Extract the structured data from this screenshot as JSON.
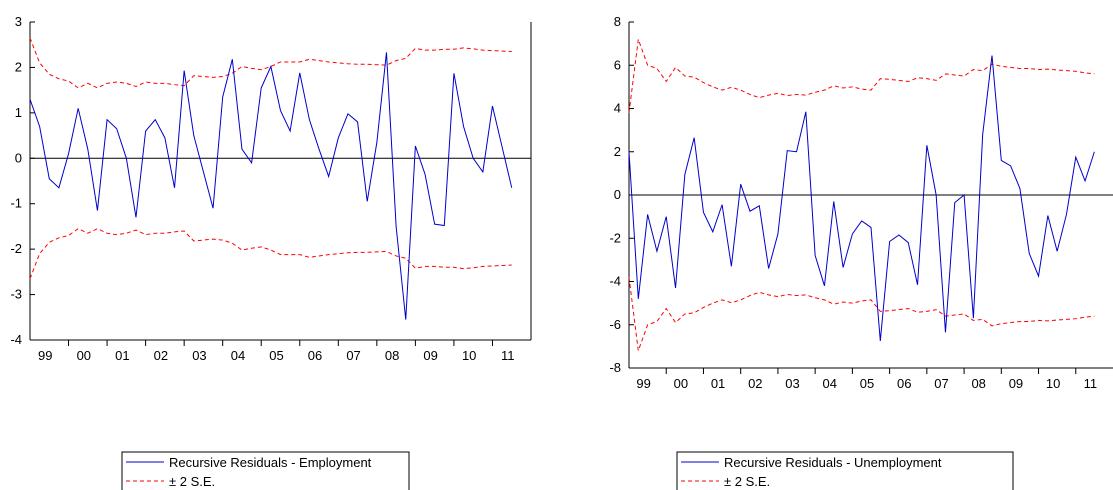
{
  "colors": {
    "residual_line": "#0000cc",
    "band_line": "#ff0000",
    "axis": "#000000",
    "zero_line": "#000000"
  },
  "chart_data": [
    {
      "type": "line",
      "title": "",
      "xlabel": "",
      "ylabel": "",
      "x_start": 1999.0,
      "x_end": 2012.0,
      "x_step": 0.25,
      "xlim": [
        1999.0,
        2012.0
      ],
      "ylim": [
        -4,
        3
      ],
      "yticks": [
        3,
        2,
        1,
        0,
        -1,
        -2,
        -3,
        -4
      ],
      "ytick_labels": [
        "3",
        "2",
        "1",
        "0",
        "-1",
        "-2",
        "-3",
        "-4"
      ],
      "xtick_labels": [
        "99",
        "00",
        "01",
        "02",
        "03",
        "04",
        "05",
        "06",
        "07",
        "08",
        "09",
        "10",
        "11"
      ],
      "grid": false,
      "zero_line": true,
      "legend_position": "bottom-center",
      "series": [
        {
          "name": "Recursive Residuals - Employment",
          "style": "solid",
          "values": [
            1.3,
            0.7,
            -0.45,
            -0.65,
            0.1,
            1.1,
            0.2,
            -1.15,
            0.85,
            0.65,
            0.0,
            -1.3,
            0.6,
            0.85,
            0.45,
            -0.65,
            1.93,
            0.5,
            -0.3,
            -1.1,
            1.35,
            2.18,
            0.2,
            -0.1,
            1.55,
            2.02,
            1.05,
            0.6,
            1.88,
            0.85,
            0.2,
            -0.4,
            0.45,
            0.98,
            0.8,
            -0.95,
            0.35,
            2.33,
            -1.5,
            -3.55,
            0.27,
            -0.35,
            -1.45,
            -1.48,
            1.87,
            0.7,
            0.0,
            -0.3,
            1.15,
            0.25,
            -0.65
          ]
        },
        {
          "name": "± 2 S.E.",
          "style": "dashed",
          "upper": [
            2.65,
            2.1,
            1.85,
            1.75,
            1.7,
            1.55,
            1.65,
            1.55,
            1.65,
            1.68,
            1.65,
            1.58,
            1.68,
            1.65,
            1.65,
            1.62,
            1.6,
            1.82,
            1.8,
            1.78,
            1.8,
            1.87,
            2.02,
            1.98,
            1.95,
            2.02,
            2.12,
            2.12,
            2.12,
            2.18,
            2.15,
            2.12,
            2.1,
            2.08,
            2.07,
            2.07,
            2.06,
            2.05,
            2.15,
            2.2,
            2.42,
            2.38,
            2.38,
            2.4,
            2.4,
            2.43,
            2.41,
            2.38,
            2.37,
            2.36,
            2.35
          ],
          "lower": [
            -2.65,
            -2.1,
            -1.85,
            -1.75,
            -1.7,
            -1.55,
            -1.65,
            -1.55,
            -1.65,
            -1.68,
            -1.65,
            -1.58,
            -1.68,
            -1.65,
            -1.65,
            -1.62,
            -1.6,
            -1.82,
            -1.8,
            -1.78,
            -1.8,
            -1.87,
            -2.02,
            -1.98,
            -1.95,
            -2.02,
            -2.12,
            -2.12,
            -2.12,
            -2.18,
            -2.15,
            -2.12,
            -2.1,
            -2.08,
            -2.07,
            -2.07,
            -2.06,
            -2.05,
            -2.15,
            -2.2,
            -2.42,
            -2.38,
            -2.38,
            -2.4,
            -2.4,
            -2.43,
            -2.41,
            -2.38,
            -2.37,
            -2.36,
            -2.35
          ]
        }
      ]
    },
    {
      "type": "line",
      "title": "",
      "xlabel": "",
      "ylabel": "",
      "x_start": 1999.0,
      "x_end": 2012.0,
      "x_step": 0.25,
      "xlim": [
        1999.0,
        2012.0
      ],
      "ylim": [
        -8,
        8
      ],
      "yticks": [
        8,
        6,
        4,
        2,
        0,
        -2,
        -4,
        -6,
        -8
      ],
      "ytick_labels": [
        "8",
        "6",
        "4",
        "2",
        "0",
        "-2",
        "-4",
        "-6",
        "-8"
      ],
      "xtick_labels": [
        "99",
        "00",
        "01",
        "02",
        "03",
        "04",
        "05",
        "06",
        "07",
        "08",
        "09",
        "10",
        "11"
      ],
      "grid": false,
      "zero_line": true,
      "legend_position": "bottom-center",
      "series": [
        {
          "name": "Recursive Residuals - Unemployment",
          "style": "solid",
          "values": [
            2.0,
            -4.8,
            -0.9,
            -2.6,
            -1.0,
            -4.3,
            0.95,
            2.65,
            -0.8,
            -1.7,
            -0.45,
            -3.3,
            0.5,
            -0.75,
            -0.5,
            -3.4,
            -1.8,
            2.05,
            2.0,
            3.85,
            -2.8,
            -4.2,
            -0.3,
            -3.35,
            -1.8,
            -1.2,
            -1.5,
            -6.75,
            -2.15,
            -1.85,
            -2.2,
            -4.15,
            2.3,
            0.0,
            -6.35,
            -0.35,
            0.0,
            -5.7,
            2.8,
            6.45,
            1.6,
            1.35,
            0.3,
            -2.7,
            -3.75,
            -0.95,
            -2.6,
            -0.9,
            1.75,
            0.65,
            2.0
          ]
        },
        {
          "name": "± 2 S.E.",
          "style": "dashed",
          "upper": [
            3.8,
            7.2,
            6.0,
            5.85,
            5.25,
            5.9,
            5.5,
            5.45,
            5.2,
            5.0,
            4.85,
            4.98,
            4.85,
            4.65,
            4.5,
            4.62,
            4.7,
            4.6,
            4.65,
            4.62,
            4.75,
            4.85,
            5.05,
            4.95,
            5.0,
            4.9,
            4.85,
            5.38,
            5.35,
            5.3,
            5.25,
            5.42,
            5.38,
            5.3,
            5.6,
            5.55,
            5.5,
            5.8,
            5.75,
            6.05,
            5.95,
            5.9,
            5.85,
            5.85,
            5.8,
            5.82,
            5.78,
            5.75,
            5.72,
            5.65,
            5.6
          ],
          "lower": [
            -3.8,
            -7.2,
            -6.0,
            -5.85,
            -5.25,
            -5.9,
            -5.5,
            -5.45,
            -5.2,
            -5.0,
            -4.85,
            -4.98,
            -4.85,
            -4.65,
            -4.5,
            -4.62,
            -4.7,
            -4.6,
            -4.65,
            -4.62,
            -4.75,
            -4.85,
            -5.05,
            -4.95,
            -5.0,
            -4.9,
            -4.85,
            -5.38,
            -5.35,
            -5.3,
            -5.25,
            -5.42,
            -5.38,
            -5.3,
            -5.6,
            -5.55,
            -5.5,
            -5.8,
            -5.75,
            -6.05,
            -5.95,
            -5.9,
            -5.85,
            -5.85,
            -5.8,
            -5.82,
            -5.78,
            -5.75,
            -5.72,
            -5.65,
            -5.6
          ]
        }
      ]
    }
  ]
}
